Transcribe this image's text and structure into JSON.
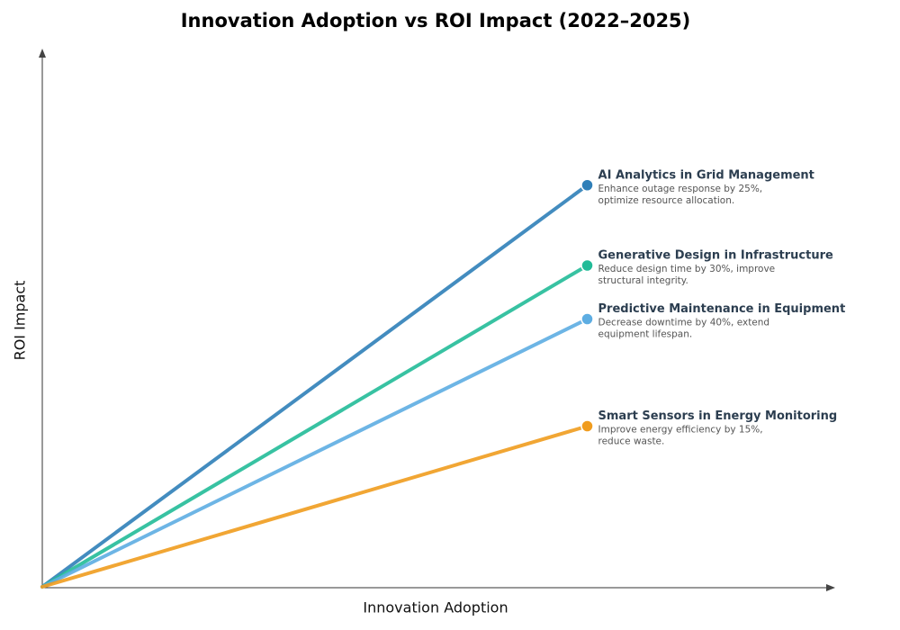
{
  "chart_data": {
    "type": "line",
    "title": "Innovation Adoption vs ROI Impact (2022–2025)",
    "xlabel": "Innovation Adoption",
    "ylabel": "ROI Impact",
    "xlim": [
      0,
      1.45
    ],
    "ylim": [
      0,
      1
    ],
    "series": [
      {
        "name": "AI Analytics in Grid Management",
        "color": "#2f7fb8",
        "x": [
          0,
          1
        ],
        "values": [
          0,
          0.75
        ],
        "description": [
          "Enhance outage response by 25%,",
          "optimize resource allocation."
        ]
      },
      {
        "name": "Generative Design in Infrastructure",
        "color": "#22bb98",
        "x": [
          0,
          1
        ],
        "values": [
          0,
          0.6
        ],
        "description": [
          "Reduce design time by 30%, improve",
          "structural integrity."
        ]
      },
      {
        "name": "Predictive Maintenance in Equipment",
        "color": "#5dade2",
        "x": [
          0,
          1
        ],
        "values": [
          0,
          0.5
        ],
        "description": [
          "Decrease downtime by 40%, extend",
          "equipment lifespan."
        ]
      },
      {
        "name": "Smart Sensors in Energy Monitoring",
        "color": "#f09c1e",
        "x": [
          0,
          1
        ],
        "values": [
          0,
          0.3
        ],
        "description": [
          "Improve energy efficiency by 15%,",
          "reduce waste."
        ]
      }
    ]
  }
}
